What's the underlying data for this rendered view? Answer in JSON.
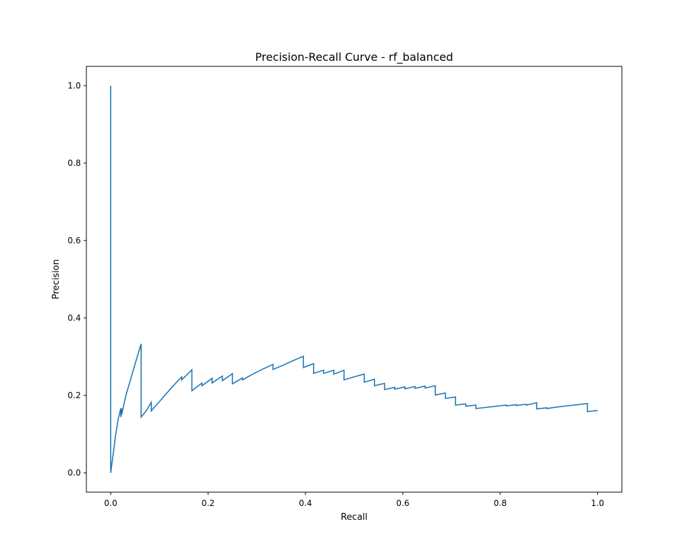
{
  "chart_data": {
    "type": "line",
    "title": "Precision-Recall Curve - rf_balanced",
    "xlabel": "Recall",
    "ylabel": "Precision",
    "xlim": [
      -0.05,
      1.05
    ],
    "ylim": [
      -0.05,
      1.05
    ],
    "xticks": [
      0.0,
      0.2,
      0.4,
      0.6,
      0.8,
      1.0
    ],
    "xtick_labels": [
      "0.0",
      "0.2",
      "0.4",
      "0.6",
      "0.8",
      "1.0"
    ],
    "yticks": [
      0.0,
      0.2,
      0.4,
      0.6,
      0.8,
      1.0
    ],
    "ytick_labels": [
      "0.0",
      "0.2",
      "0.4",
      "0.6",
      "0.8",
      "1.0"
    ],
    "grid": false,
    "series": [
      {
        "color": "#1f77b4",
        "x": [
          0.0,
          0.0,
          0.0052,
          0.0104,
          0.0156,
          0.0208,
          0.0208,
          0.0224,
          0.0224,
          0.0312,
          0.0417,
          0.0521,
          0.0625,
          0.0625,
          0.0729,
          0.0833,
          0.0833,
          0.1042,
          0.125,
          0.1458,
          0.1458,
          0.1667,
          0.1667,
          0.1875,
          0.1875,
          0.2083,
          0.2083,
          0.2292,
          0.2292,
          0.25,
          0.25,
          0.2708,
          0.2708,
          0.2917,
          0.3125,
          0.3333,
          0.3333,
          0.3542,
          0.375,
          0.3958,
          0.3958,
          0.4167,
          0.4167,
          0.4375,
          0.4375,
          0.4583,
          0.4583,
          0.4792,
          0.4792,
          0.5,
          0.5208,
          0.5208,
          0.5417,
          0.5417,
          0.5625,
          0.5625,
          0.5833,
          0.5833,
          0.6042,
          0.6042,
          0.625,
          0.625,
          0.6458,
          0.6458,
          0.6667,
          0.6667,
          0.6875,
          0.6875,
          0.7083,
          0.7083,
          0.7292,
          0.7292,
          0.75,
          0.75,
          0.7708,
          0.7917,
          0.8125,
          0.8125,
          0.8333,
          0.8333,
          0.8542,
          0.8542,
          0.875,
          0.875,
          0.8958,
          0.8958,
          0.9167,
          0.9375,
          0.9583,
          0.9792,
          0.9792,
          1.0
        ],
        "y": [
          1.0,
          0.0,
          0.05,
          0.1,
          0.14,
          0.167,
          0.144,
          0.166,
          0.15,
          0.2,
          0.245,
          0.29,
          0.333,
          0.144,
          0.16,
          0.182,
          0.16,
          0.19,
          0.22,
          0.248,
          0.24,
          0.266,
          0.212,
          0.232,
          0.225,
          0.244,
          0.232,
          0.25,
          0.238,
          0.256,
          0.23,
          0.245,
          0.24,
          0.255,
          0.268,
          0.28,
          0.267,
          0.278,
          0.29,
          0.301,
          0.272,
          0.282,
          0.257,
          0.265,
          0.257,
          0.265,
          0.255,
          0.265,
          0.24,
          0.248,
          0.255,
          0.234,
          0.242,
          0.225,
          0.231,
          0.215,
          0.221,
          0.216,
          0.222,
          0.217,
          0.223,
          0.218,
          0.224,
          0.219,
          0.225,
          0.201,
          0.206,
          0.192,
          0.196,
          0.175,
          0.178,
          0.172,
          0.175,
          0.166,
          0.169,
          0.172,
          0.175,
          0.173,
          0.176,
          0.174,
          0.177,
          0.175,
          0.181,
          0.165,
          0.168,
          0.166,
          0.17,
          0.173,
          0.176,
          0.179,
          0.158,
          0.161
        ]
      }
    ]
  }
}
